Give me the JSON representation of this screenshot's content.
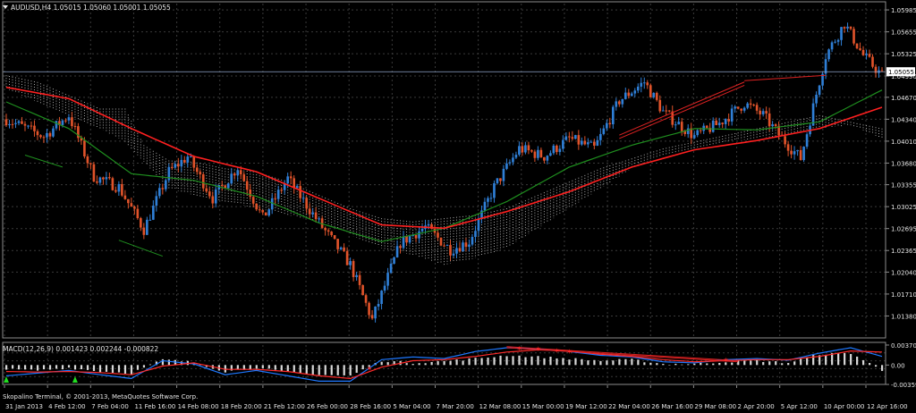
{
  "colors": {
    "background": "#000000",
    "grid": "#3a3a3a",
    "frame": "#8c8c8c",
    "text": "#e6e6e6",
    "bull": "#2f7fd6",
    "bear": "#e0532a",
    "ma_fast": "#1f8f1f",
    "ma_slow": "#ff2020",
    "cloud_up": "#c9c9c9",
    "cloud_down": "#d9a37a",
    "trendline": "#dd2222",
    "macd_hist": "#d8d8d8",
    "macd_line": "#1e78ff",
    "macd_signal": "#ff2a2a",
    "up_arrow": "#22dd22",
    "price_line": "#8fa6c9"
  },
  "main": {
    "title_icon": "dropdown-triangle-icon",
    "title": "AUDUSD,H4  1.05015 1.05060 1.05001 1.05055"
  },
  "macd": {
    "title": "MACD(12,26,9) 0.001423 0.002244 -0.000822"
  },
  "footer": {
    "copyright": "Skopalino Terminal, © 2001-2013, MetaQuotes Software Corp."
  },
  "chart_data": [
    {
      "type": "candlestick",
      "symbol": "AUDUSD",
      "timeframe": "H4",
      "current_price": 1.05055,
      "current_price_label": "1.05055",
      "ylim": [
        1.0105,
        1.0608
      ],
      "y_ticks": [
        1.05985,
        1.05655,
        1.05325,
        1.0499,
        1.0467,
        1.0434,
        1.0401,
        1.0368,
        1.03355,
        1.03025,
        1.02695,
        1.02365,
        1.0204,
        1.0171,
        1.0138
      ],
      "y_tick_labels": [
        "1.05985",
        "1.05655",
        "1.05325",
        "1.04990",
        "1.04670",
        "1.04340",
        "1.04010",
        "1.03680",
        "1.03355",
        "1.03025",
        "1.02695",
        "1.02365",
        "1.02040",
        "1.01710",
        "1.01380"
      ],
      "x_tick_labels": [
        "31 Jan 2013",
        "4 Feb 12:00",
        "7 Feb 04:00",
        "11 Feb 16:00",
        "14 Feb 08:00",
        "18 Feb 20:00",
        "21 Feb 12:00",
        "26 Feb 00:00",
        "28 Feb 16:00",
        "5 Mar 04:00",
        "7 Mar 20:00",
        "12 Mar 08:00",
        "15 Mar 00:00",
        "19 Mar 12:00",
        "22 Mar 04:00",
        "26 Mar 16:00",
        "29 Mar 08:00",
        "2 Apr 20:00",
        "5 Apr 12:00",
        "10 Apr 00:00",
        "12 Apr 16:00"
      ],
      "anchors": [
        [
          0,
          1.0434
        ],
        [
          12,
          1.0408
        ],
        [
          20,
          1.044
        ],
        [
          28,
          1.0348
        ],
        [
          36,
          1.0332
        ],
        [
          44,
          1.0268
        ],
        [
          52,
          1.0355
        ],
        [
          58,
          1.0378
        ],
        [
          66,
          1.0315
        ],
        [
          74,
          1.0362
        ],
        [
          82,
          1.0285
        ],
        [
          90,
          1.0345
        ],
        [
          100,
          1.0278
        ],
        [
          110,
          1.0215
        ],
        [
          117,
          1.0132
        ],
        [
          126,
          1.0248
        ],
        [
          134,
          1.0272
        ],
        [
          142,
          1.0238
        ],
        [
          148,
          1.025
        ],
        [
          156,
          1.0332
        ],
        [
          164,
          1.039
        ],
        [
          172,
          1.0378
        ],
        [
          180,
          1.0405
        ],
        [
          188,
          1.039
        ],
        [
          196,
          1.0462
        ],
        [
          204,
          1.049
        ],
        [
          210,
          1.0445
        ],
        [
          220,
          1.0408
        ],
        [
          228,
          1.0428
        ],
        [
          236,
          1.0458
        ],
        [
          242,
          1.044
        ],
        [
          248,
          1.0405
        ],
        [
          254,
          1.0375
        ],
        [
          262,
          1.053
        ],
        [
          268,
          1.0578
        ],
        [
          274,
          1.053
        ],
        [
          280,
          1.05
        ]
      ],
      "ma_slow": [
        [
          0,
          1.0482
        ],
        [
          20,
          1.0465
        ],
        [
          40,
          1.042
        ],
        [
          60,
          1.0378
        ],
        [
          80,
          1.0355
        ],
        [
          100,
          1.0315
        ],
        [
          120,
          1.0275
        ],
        [
          140,
          1.027
        ],
        [
          160,
          1.0295
        ],
        [
          180,
          1.0325
        ],
        [
          200,
          1.0362
        ],
        [
          220,
          1.0388
        ],
        [
          240,
          1.0402
        ],
        [
          260,
          1.042
        ],
        [
          280,
          1.0452
        ]
      ],
      "ma_fast": [
        [
          0,
          1.046
        ],
        [
          20,
          1.042
        ],
        [
          40,
          1.0352
        ],
        [
          60,
          1.0342
        ],
        [
          80,
          1.0318
        ],
        [
          100,
          1.0278
        ],
        [
          120,
          1.025
        ],
        [
          140,
          1.027
        ],
        [
          160,
          1.031
        ],
        [
          180,
          1.0362
        ],
        [
          200,
          1.0395
        ],
        [
          220,
          1.042
        ],
        [
          240,
          1.0418
        ],
        [
          260,
          1.043
        ],
        [
          280,
          1.0478
        ]
      ],
      "cloud_up": [
        [
          0,
          1.05
        ],
        [
          10,
          1.049
        ],
        [
          20,
          1.047
        ],
        [
          30,
          1.045
        ],
        [
          38,
          1.045
        ],
        [
          44,
          1.0395
        ],
        [
          52,
          1.0372
        ],
        [
          60,
          1.037
        ],
        [
          70,
          1.036
        ],
        [
          80,
          1.0355
        ],
        [
          90,
          1.034
        ],
        [
          100,
          1.032
        ],
        [
          110,
          1.03
        ],
        [
          120,
          1.0285
        ],
        [
          130,
          1.028
        ],
        [
          140,
          1.0285
        ],
        [
          150,
          1.029
        ],
        [
          160,
          1.03
        ],
        [
          170,
          1.032
        ],
        [
          180,
          1.034
        ],
        [
          190,
          1.036
        ],
        [
          200,
          1.0375
        ],
        [
          210,
          1.039
        ],
        [
          220,
          1.04
        ],
        [
          230,
          1.041
        ],
        [
          240,
          1.042
        ],
        [
          250,
          1.043
        ],
        [
          260,
          1.044
        ],
        [
          270,
          1.043
        ],
        [
          280,
          1.042
        ]
      ],
      "cloud_down": [
        [
          0,
          1.048
        ],
        [
          10,
          1.046
        ],
        [
          20,
          1.044
        ],
        [
          30,
          1.042
        ],
        [
          38,
          1.04
        ],
        [
          44,
          1.037
        ],
        [
          52,
          1.033
        ],
        [
          60,
          1.032
        ],
        [
          70,
          1.031
        ],
        [
          80,
          1.03
        ],
        [
          90,
          1.029
        ],
        [
          100,
          1.028
        ],
        [
          110,
          1.026
        ],
        [
          120,
          1.024
        ],
        [
          130,
          1.023
        ],
        [
          140,
          1.0215
        ],
        [
          150,
          1.0225
        ],
        [
          160,
          1.024
        ],
        [
          170,
          1.027
        ],
        [
          180,
          1.03
        ],
        [
          190,
          1.033
        ],
        [
          200,
          1.036
        ],
        [
          210,
          1.038
        ],
        [
          220,
          1.039
        ],
        [
          230,
          1.04
        ],
        [
          240,
          1.0405
        ],
        [
          250,
          1.041
        ],
        [
          260,
          1.042
        ],
        [
          270,
          1.0425
        ],
        [
          280,
          1.0405
        ]
      ],
      "trendlines": [
        {
          "color": "trendline",
          "points": [
            [
              196,
              1.041
            ],
            [
              236,
              1.049
            ]
          ]
        },
        {
          "color": "trendline",
          "points": [
            [
              196,
              1.0405
            ],
            [
              236,
              1.0485
            ]
          ]
        },
        {
          "color": "trendline",
          "points": [
            [
              236,
              1.0492
            ],
            [
              262,
              1.05
            ]
          ]
        },
        {
          "color": "ma_fast",
          "points": [
            [
              6,
              1.038
            ],
            [
              18,
              1.0362
            ]
          ]
        },
        {
          "color": "ma_fast",
          "points": [
            [
              36,
              1.0252
            ],
            [
              50,
              1.0228
            ]
          ]
        }
      ]
    },
    {
      "type": "histogram+line",
      "name": "MACD(12,26,9)",
      "values_label": [
        "0.001423",
        "0.002244",
        "-0.000822"
      ],
      "ylim": [
        -0.00359,
        0.0037
      ],
      "y_ticks": [
        0.003703,
        0.0,
        -0.003597
      ],
      "y_tick_labels": [
        "0.003703",
        "0.00",
        "-0.003597"
      ],
      "hist_anchors": [
        [
          0,
          -0.0008
        ],
        [
          10,
          -0.001
        ],
        [
          20,
          -0.0005
        ],
        [
          30,
          -0.0012
        ],
        [
          40,
          -0.0015
        ],
        [
          50,
          0.001
        ],
        [
          60,
          0.0005
        ],
        [
          70,
          -0.0012
        ],
        [
          80,
          -0.0005
        ],
        [
          90,
          -0.0014
        ],
        [
          100,
          -0.0018
        ],
        [
          110,
          -0.002
        ],
        [
          120,
          0.0008
        ],
        [
          130,
          0.0004
        ],
        [
          140,
          0.0007
        ],
        [
          150,
          0.0012
        ],
        [
          160,
          0.0018
        ],
        [
          170,
          0.0015
        ],
        [
          180,
          0.0012
        ],
        [
          190,
          0.0008
        ],
        [
          200,
          0.001
        ],
        [
          210,
          0.0002
        ],
        [
          220,
          0.0002
        ],
        [
          230,
          0.0006
        ],
        [
          240,
          0.0008
        ],
        [
          250,
          0.0004
        ],
        [
          260,
          0.002
        ],
        [
          270,
          0.0022
        ],
        [
          280,
          -0.001
        ]
      ],
      "line_anchors": [
        [
          0,
          -0.002
        ],
        [
          10,
          -0.0015
        ],
        [
          20,
          -0.001
        ],
        [
          30,
          -0.0018
        ],
        [
          40,
          -0.0025
        ],
        [
          50,
          0.0008
        ],
        [
          60,
          0.0002
        ],
        [
          70,
          -0.0018
        ],
        [
          80,
          -0.001
        ],
        [
          90,
          -0.002
        ],
        [
          100,
          -0.003
        ],
        [
          110,
          -0.003
        ],
        [
          120,
          0.001
        ],
        [
          130,
          0.0015
        ],
        [
          140,
          0.0012
        ],
        [
          150,
          0.0025
        ],
        [
          160,
          0.0032
        ],
        [
          170,
          0.003
        ],
        [
          180,
          0.0025
        ],
        [
          190,
          0.0018
        ],
        [
          200,
          0.0015
        ],
        [
          210,
          0.0006
        ],
        [
          220,
          0.0004
        ],
        [
          230,
          0.001
        ],
        [
          240,
          0.0012
        ],
        [
          250,
          0.0009
        ],
        [
          260,
          0.0022
        ],
        [
          270,
          0.0032
        ],
        [
          280,
          0.0016
        ]
      ],
      "signal_anchors": [
        [
          0,
          -0.0012
        ],
        [
          10,
          -0.0013
        ],
        [
          20,
          -0.0012
        ],
        [
          30,
          -0.0014
        ],
        [
          40,
          -0.0018
        ],
        [
          50,
          -0.0002
        ],
        [
          60,
          0.0004
        ],
        [
          70,
          -0.0008
        ],
        [
          80,
          -0.0008
        ],
        [
          90,
          -0.0012
        ],
        [
          100,
          -0.002
        ],
        [
          110,
          -0.0025
        ],
        [
          120,
          -0.0004
        ],
        [
          130,
          0.0008
        ],
        [
          140,
          0.001
        ],
        [
          150,
          0.0016
        ],
        [
          160,
          0.0024
        ],
        [
          170,
          0.0028
        ],
        [
          180,
          0.0026
        ],
        [
          190,
          0.002
        ],
        [
          200,
          0.0016
        ],
        [
          210,
          0.001
        ],
        [
          220,
          0.0006
        ],
        [
          230,
          0.0008
        ],
        [
          240,
          0.001
        ],
        [
          250,
          0.001
        ],
        [
          260,
          0.0016
        ],
        [
          270,
          0.0026
        ],
        [
          280,
          0.0024
        ]
      ],
      "trendlines": [
        {
          "points": [
            [
              160,
              0.0034
            ],
            [
              234,
              0.0008
            ]
          ]
        },
        {
          "points": [
            [
              160,
              0.0032
            ],
            [
              234,
              0.0006
            ]
          ]
        }
      ],
      "up_arrows": [
        0,
        22
      ],
      "red_markers": [
        116,
        164,
        170,
        176,
        180,
        230
      ]
    }
  ]
}
